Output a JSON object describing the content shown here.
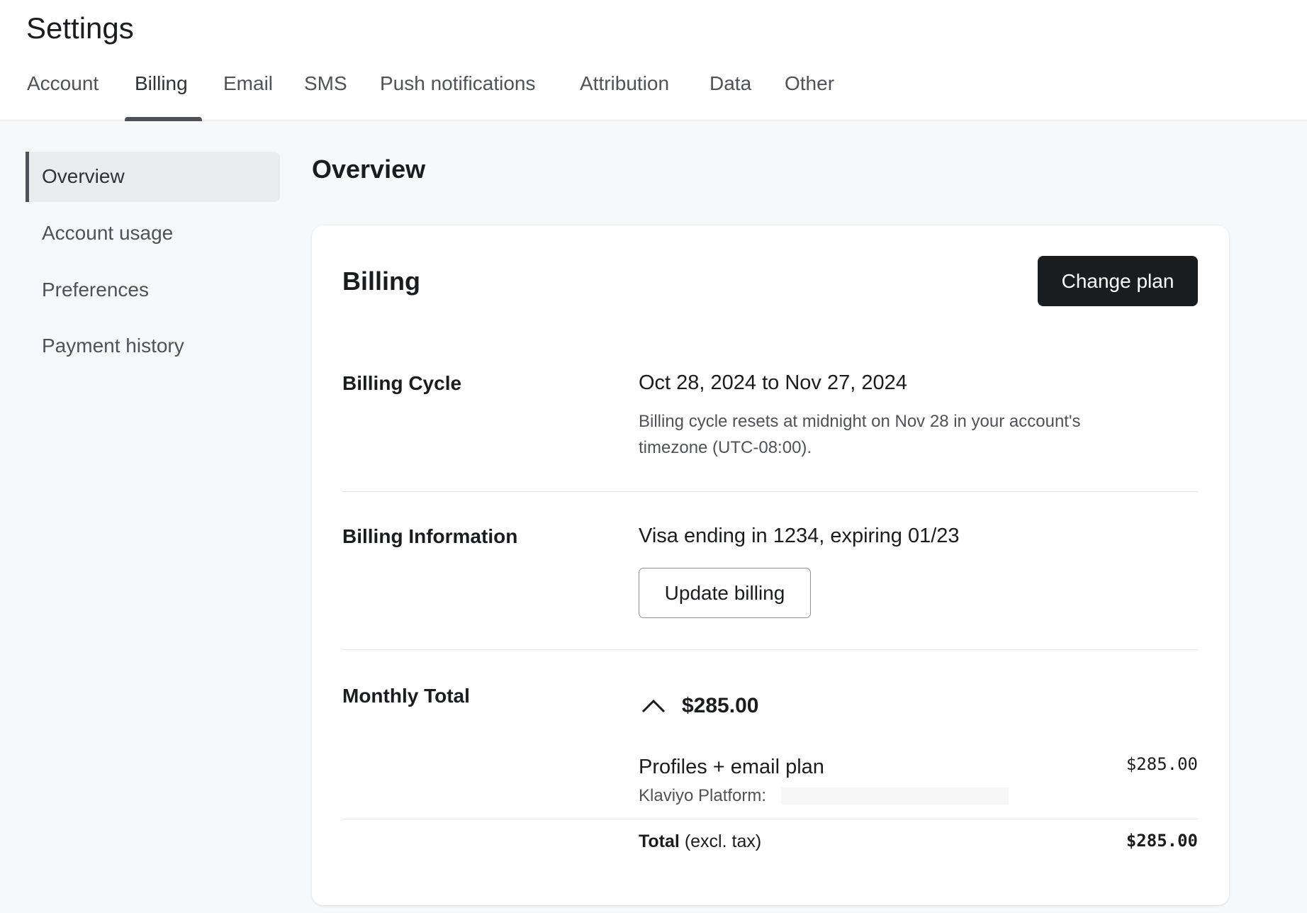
{
  "header": {
    "title": "Settings",
    "tabs": [
      {
        "label": "Account"
      },
      {
        "label": "Billing",
        "active": true
      },
      {
        "label": "Email"
      },
      {
        "label": "SMS"
      },
      {
        "label": "Push notifications"
      },
      {
        "label": "Attribution"
      },
      {
        "label": "Data"
      },
      {
        "label": "Other"
      }
    ]
  },
  "sidebar": {
    "items": [
      {
        "label": "Overview",
        "selected": true
      },
      {
        "label": "Account usage"
      },
      {
        "label": "Preferences"
      },
      {
        "label": "Payment history"
      }
    ]
  },
  "main": {
    "heading": "Overview",
    "card": {
      "title": "Billing",
      "change_plan_label": "Change plan",
      "billing_cycle": {
        "label": "Billing Cycle",
        "value": "Oct 28, 2024 to Nov 27, 2024",
        "desc_line1": "Billing cycle resets at midnight on Nov 28 in your account's",
        "desc_line2": "timezone (UTC-08:00)."
      },
      "billing_info": {
        "label": "Billing Information",
        "value": "Visa ending in 1234, expiring 01/23",
        "button": "Update billing"
      },
      "monthly_total": {
        "label": "Monthly Total",
        "amount": "$285.00",
        "icon": "chevron-up-icon",
        "line_item": {
          "name": "Profiles + email plan",
          "amount": "$285.00",
          "sub": "Klaviyo Platform:"
        },
        "total_label": "Total",
        "total_suffix": "(excl. tax)",
        "total_amount": "$285.00"
      }
    }
  }
}
